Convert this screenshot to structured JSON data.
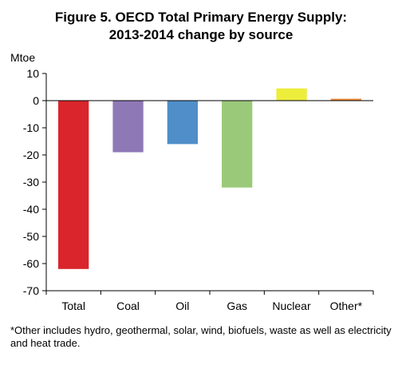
{
  "title_line1": "Figure 5. OECD Total Primary Energy Supply:",
  "title_line2": "2013-2014 change by source",
  "footnote": "*Other includes hydro, geothermal, solar, wind, biofuels, waste as well as electricity and heat trade.",
  "chart_data": {
    "type": "bar",
    "title": "Figure 5. OECD Total Primary Energy Supply: 2013-2014 change by source",
    "ylabel": "Mtoe",
    "xlabel": "",
    "categories": [
      "Total",
      "Coal",
      "Oil",
      "Gas",
      "Nuclear",
      "Other*"
    ],
    "values": [
      -62,
      -19,
      -16,
      -32,
      4.5,
      0.7
    ],
    "colors": [
      "#d9252b",
      "#8f78b6",
      "#4f8ec9",
      "#9bc97a",
      "#eded3c",
      "#ef8a3b"
    ],
    "ylim": [
      -70,
      10
    ],
    "yticks": [
      10,
      0,
      -10,
      -20,
      -30,
      -40,
      -50,
      -60,
      -70
    ],
    "grid": false,
    "legend": "none"
  }
}
